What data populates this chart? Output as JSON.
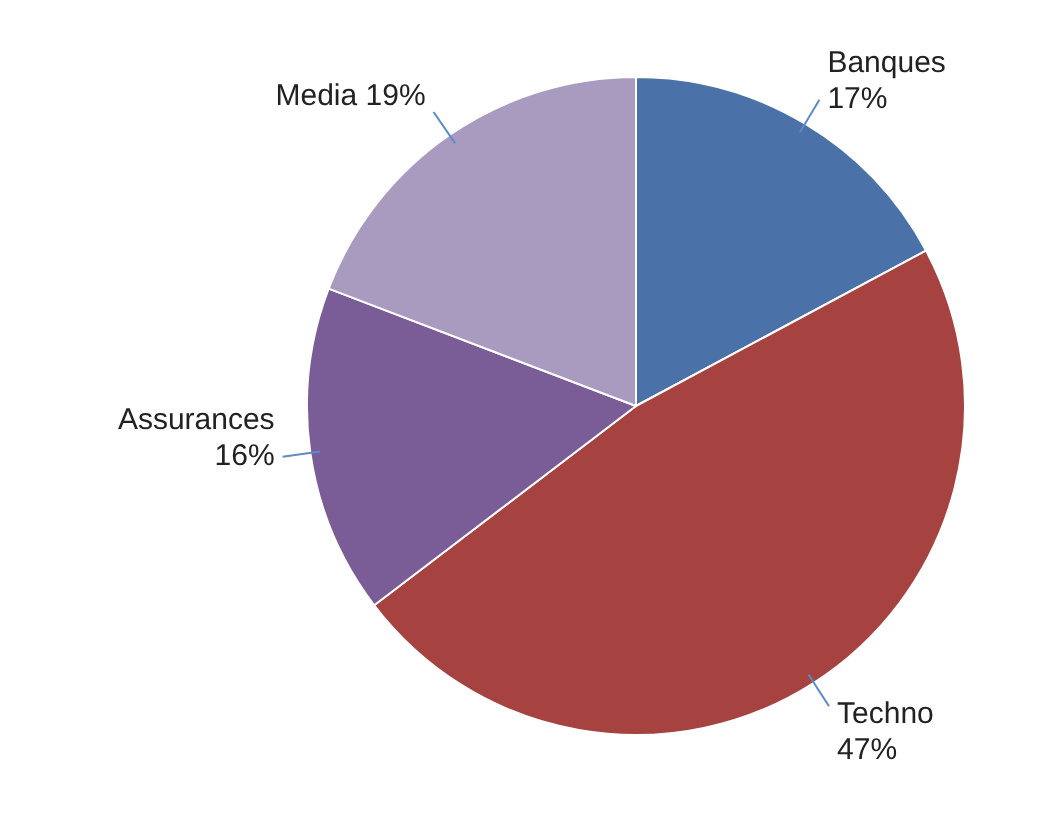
{
  "chart_data": {
    "type": "pie",
    "categories": [
      "Banques",
      "Techno",
      "Assurances",
      "Media"
    ],
    "values": [
      17,
      47,
      16,
      19
    ],
    "colors": [
      "#4a72a8",
      "#a6423f",
      "#7a5d96",
      "#a99bc0"
    ],
    "value_labels": [
      "17%",
      "47%",
      "16%",
      "19%"
    ],
    "legend": false
  }
}
